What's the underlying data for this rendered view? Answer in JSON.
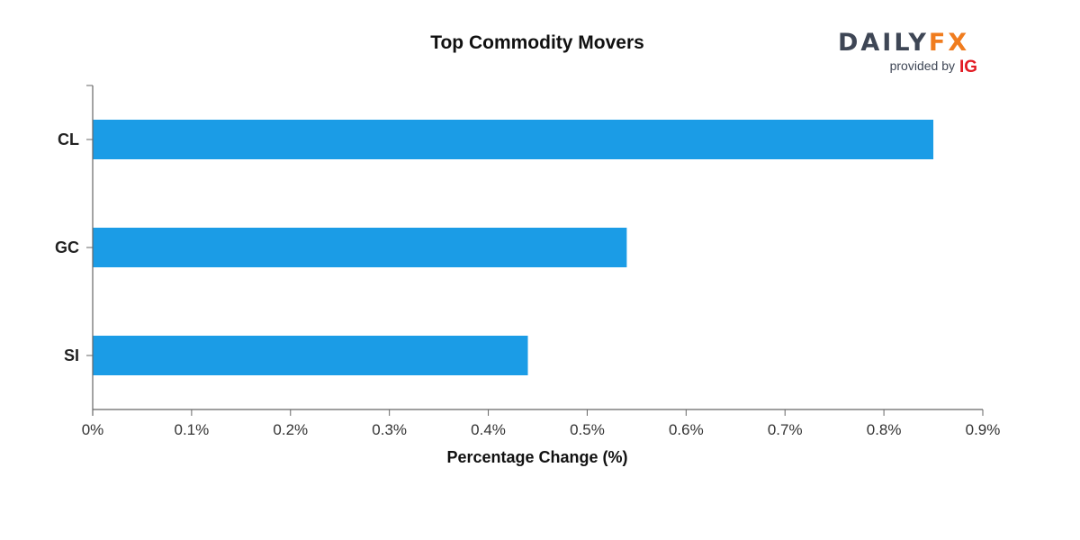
{
  "logo": {
    "daily": "DAILY",
    "fx": "FX",
    "provided_by": "provided by",
    "ig": "IG",
    "color_dark": "#3e4655",
    "color_accent": "#f07c1e",
    "color_ig": "#e21b23"
  },
  "chart_data": {
    "type": "bar",
    "orientation": "horizontal",
    "title": "Top Commodity Movers",
    "xlabel": "Percentage Change (%)",
    "ylabel": "",
    "categories": [
      "CL",
      "GC",
      "SI"
    ],
    "values": [
      0.85,
      0.54,
      0.44
    ],
    "xlim": [
      0,
      0.9
    ],
    "xticks": [
      0,
      0.1,
      0.2,
      0.3,
      0.4,
      0.5,
      0.6,
      0.7,
      0.8,
      0.9
    ],
    "xtick_labels": [
      "0%",
      "0.1%",
      "0.2%",
      "0.3%",
      "0.4%",
      "0.5%",
      "0.6%",
      "0.7%",
      "0.8%",
      "0.9%"
    ],
    "bar_color": "#1b9ce6",
    "axis_color": "#666666",
    "grid": false,
    "legend": "none"
  }
}
